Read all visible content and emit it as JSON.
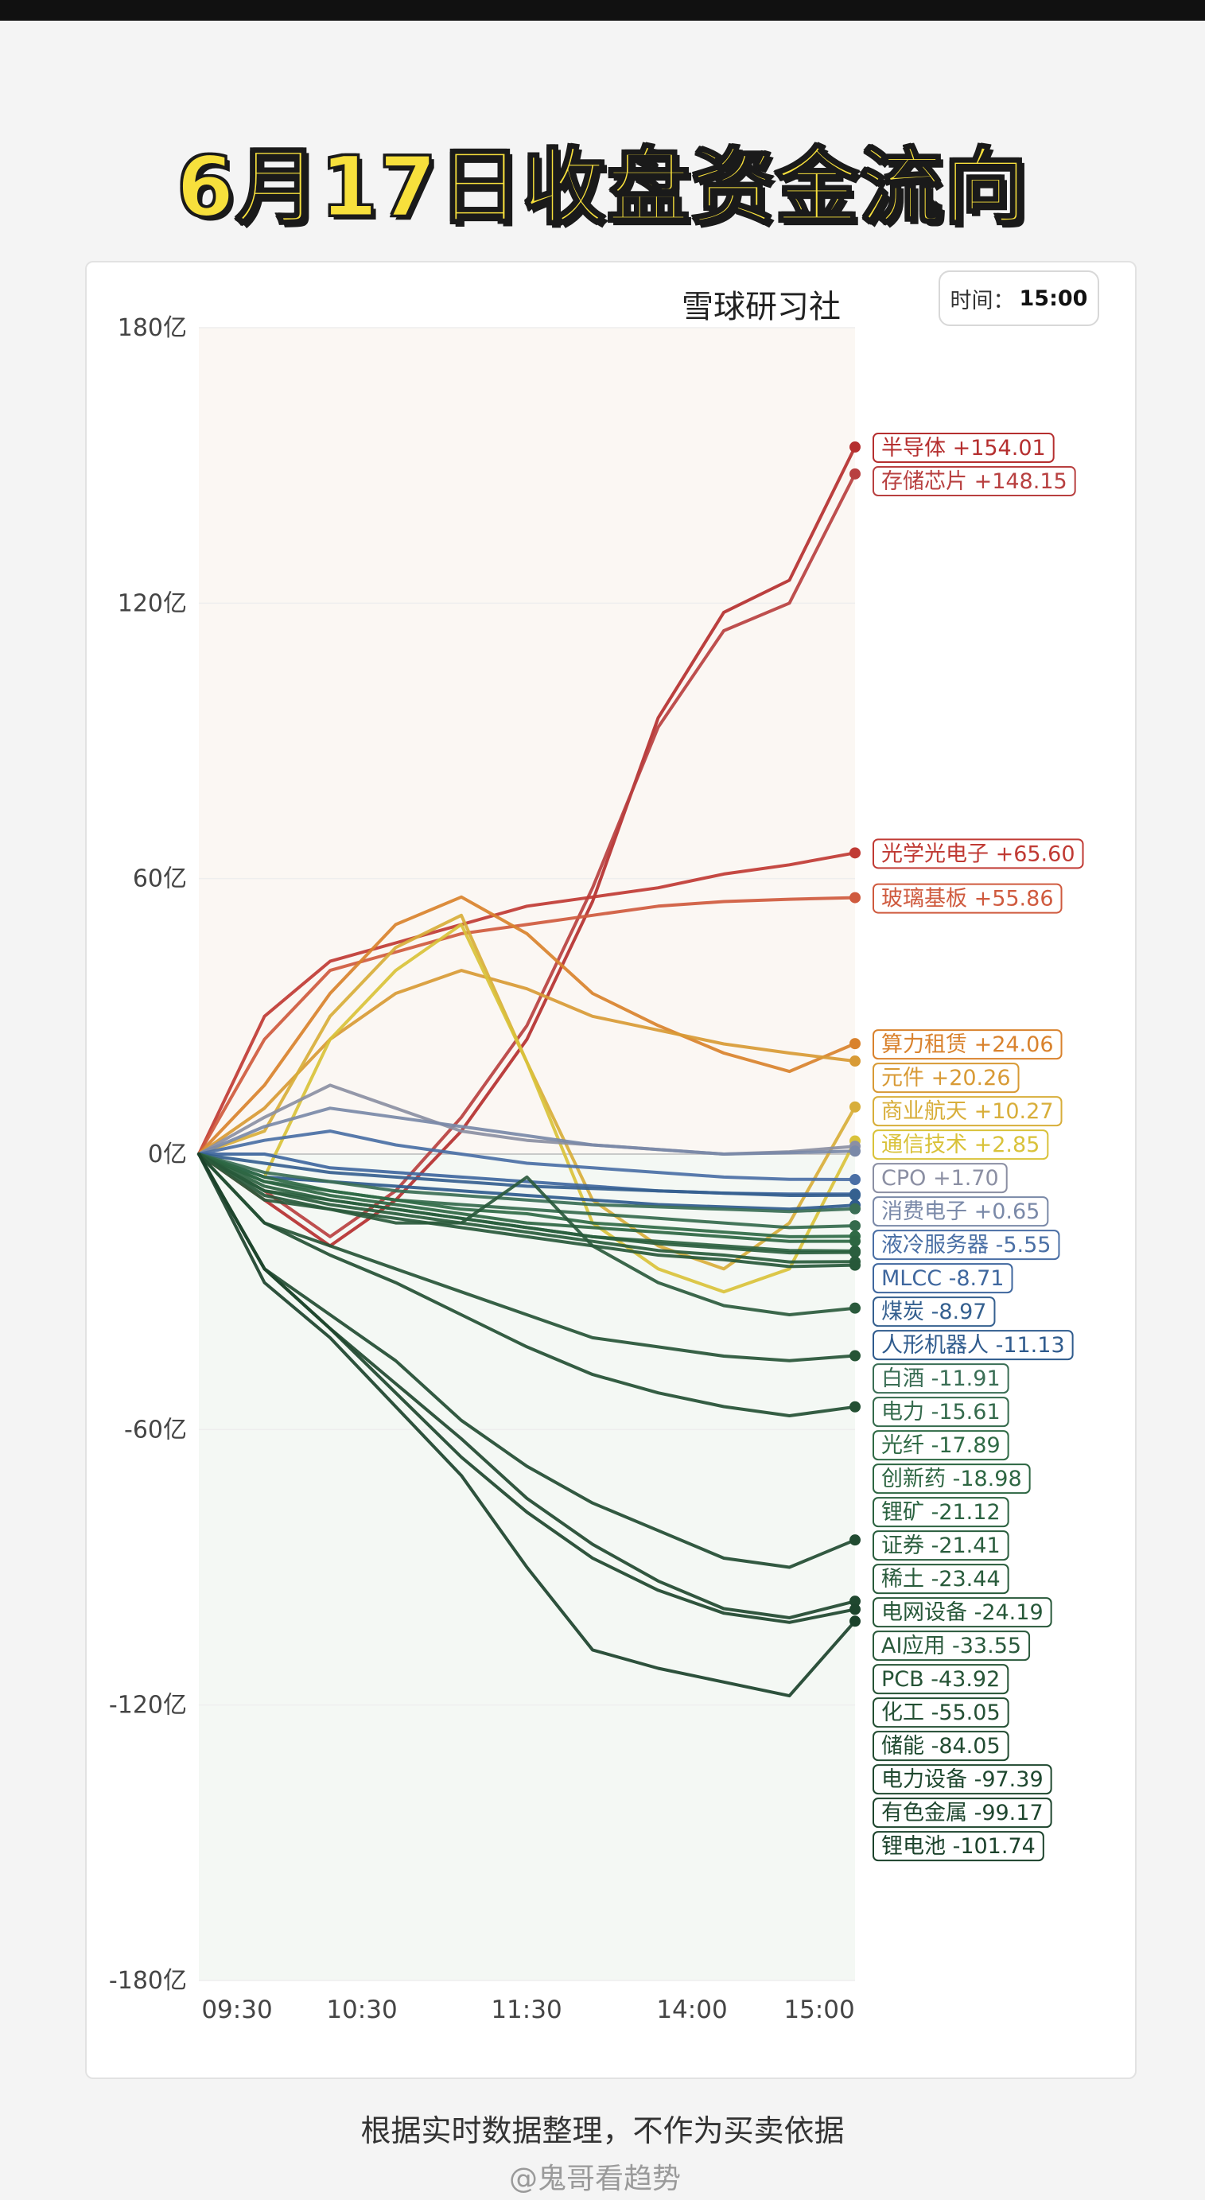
{
  "headline": "6月17日收盘资金流向",
  "brand": "雪球研习社",
  "time_label": "时间：",
  "time_value": "15:00",
  "footnote": "根据实时数据整理，不作为买卖依据",
  "watermark": "@鬼哥看趋势",
  "colors": {
    "up_strong": "#b8302c",
    "up": "#d9742a",
    "up_light": "#d8b836",
    "neutral": "#8a94a8",
    "blue": "#2e5e9a",
    "down": "#2f6e4a",
    "down_dark": "#1f4d33"
  },
  "chart_data": {
    "type": "line",
    "title": "6月17日收盘资金流向",
    "xlabel": "",
    "ylabel": "",
    "x_ticks": [
      "09:30",
      "10:30",
      "11:30",
      "14:00",
      "15:00"
    ],
    "y_ticks": [
      "180亿",
      "120亿",
      "60亿",
      "0亿",
      "-60亿",
      "-120亿",
      "-180亿"
    ],
    "ylim": [
      -180,
      180
    ],
    "unit": "亿",
    "grid": true,
    "series": [
      {
        "name": "半导体",
        "value_text": "+154.01",
        "color": "#b52f2f",
        "values": [
          0,
          -10,
          -20,
          -10,
          5,
          25,
          55,
          95,
          118,
          125,
          154.01
        ]
      },
      {
        "name": "存储芯片",
        "value_text": "+148.15",
        "color": "#b84040",
        "values": [
          0,
          -8,
          -18,
          -8,
          8,
          28,
          58,
          93,
          114,
          120,
          148.15
        ]
      },
      {
        "name": "光学光电子",
        "value_text": "+65.60",
        "color": "#c03a34",
        "values": [
          0,
          30,
          42,
          46,
          50,
          54,
          56,
          58,
          61,
          63,
          65.6
        ]
      },
      {
        "name": "玻璃基板",
        "value_text": "+55.86",
        "color": "#cf5a3e",
        "values": [
          0,
          25,
          40,
          44,
          48,
          50,
          52,
          54,
          55,
          55.5,
          55.86
        ]
      },
      {
        "name": "算力租赁",
        "value_text": "+24.06",
        "color": "#d9822d",
        "values": [
          0,
          15,
          35,
          50,
          56,
          48,
          35,
          28,
          22,
          18,
          24.06
        ]
      },
      {
        "name": "元件",
        "value_text": "+20.26",
        "color": "#d89a35",
        "values": [
          0,
          10,
          25,
          35,
          40,
          36,
          30,
          27,
          24,
          22,
          20.26
        ]
      },
      {
        "name": "商业航天",
        "value_text": "+10.27",
        "color": "#d8ae3a",
        "values": [
          0,
          5,
          30,
          45,
          52,
          20,
          -10,
          -20,
          -25,
          -15,
          10.27
        ]
      },
      {
        "name": "通信技术",
        "value_text": "+2.85",
        "color": "#d9c23a",
        "values": [
          0,
          -5,
          25,
          40,
          50,
          20,
          -15,
          -25,
          -30,
          -25,
          2.85
        ]
      },
      {
        "name": "CPO",
        "value_text": "+1.70",
        "color": "#8b8fa3",
        "values": [
          0,
          8,
          15,
          10,
          5,
          3,
          2,
          1,
          0,
          0.5,
          1.7
        ]
      },
      {
        "name": "消费电子",
        "value_text": "+0.65",
        "color": "#7a89a8",
        "values": [
          0,
          6,
          10,
          8,
          6,
          4,
          2,
          1,
          0,
          0.3,
          0.65
        ]
      },
      {
        "name": "液冷服务器",
        "value_text": "-5.55",
        "color": "#4a6fa5",
        "values": [
          0,
          3,
          5,
          2,
          0,
          -2,
          -3,
          -4,
          -5,
          -5.5,
          -5.55
        ]
      },
      {
        "name": "MLCC",
        "value_text": "-8.71",
        "color": "#3f679e",
        "values": [
          0,
          0,
          -3,
          -4,
          -5,
          -6,
          -7,
          -8,
          -8.5,
          -8.7,
          -8.71
        ]
      },
      {
        "name": "煤炭",
        "value_text": "-8.97",
        "color": "#35608f",
        "values": [
          0,
          -2,
          -4,
          -5,
          -6,
          -7,
          -7.5,
          -8,
          -8.5,
          -9,
          -8.97
        ]
      },
      {
        "name": "人形机器人",
        "value_text": "-11.13",
        "color": "#2f5b8d",
        "values": [
          0,
          -5,
          -6,
          -7,
          -8,
          -9,
          -10,
          -11,
          -11.5,
          -12,
          -11.13
        ]
      },
      {
        "name": "白酒",
        "value_text": "-11.91",
        "color": "#3a6e55",
        "values": [
          0,
          -4,
          -6,
          -8,
          -9,
          -10,
          -11,
          -11.5,
          -12,
          -12.5,
          -11.91
        ]
      },
      {
        "name": "电力",
        "value_text": "-15.61",
        "color": "#346a4c",
        "values": [
          0,
          -6,
          -8,
          -10,
          -11,
          -12,
          -13,
          -14,
          -15,
          -16,
          -15.61
        ]
      },
      {
        "name": "光纤",
        "value_text": "-17.89",
        "color": "#2f6a45",
        "values": [
          0,
          -5,
          -8,
          -10,
          -12,
          -13,
          -15,
          -16,
          -17,
          -18,
          -17.89
        ]
      },
      {
        "name": "创新药",
        "value_text": "-18.98",
        "color": "#2d6642",
        "values": [
          0,
          -6,
          -9,
          -11,
          -13,
          -15,
          -16,
          -17,
          -18,
          -19,
          -18.98
        ]
      },
      {
        "name": "锂矿",
        "value_text": "-21.12",
        "color": "#2b6240",
        "values": [
          0,
          -7,
          -10,
          -12,
          -14,
          -16,
          -18,
          -19,
          -20,
          -21,
          -21.12
        ]
      },
      {
        "name": "证券",
        "value_text": "-21.41",
        "color": "#2a5e3e",
        "values": [
          0,
          -8,
          -10,
          -12,
          -14,
          -16,
          -18,
          -19.5,
          -20.5,
          -21.5,
          -21.41
        ]
      },
      {
        "name": "稀土",
        "value_text": "-23.44",
        "color": "#285b3b",
        "values": [
          0,
          -8,
          -11,
          -13,
          -15,
          -17,
          -19,
          -21,
          -22,
          -23.5,
          -23.44
        ]
      },
      {
        "name": "电网设备",
        "value_text": "-24.19",
        "color": "#275839",
        "values": [
          0,
          -9,
          -12,
          -14,
          -16,
          -18,
          -20,
          -22,
          -23,
          -24.5,
          -24.19
        ]
      },
      {
        "name": "AI应用",
        "value_text": "-33.55",
        "color": "#2a5a3c",
        "values": [
          0,
          -10,
          -12,
          -15,
          -15,
          -5,
          -20,
          -28,
          -33,
          -35,
          -33.55
        ]
      },
      {
        "name": "PCB",
        "value_text": "-43.92",
        "color": "#265436",
        "values": [
          0,
          -15,
          -20,
          -25,
          -30,
          -35,
          -40,
          -42,
          -44,
          -45,
          -43.92
        ]
      },
      {
        "name": "化工",
        "value_text": "-55.05",
        "color": "#234f33",
        "values": [
          0,
          -15,
          -22,
          -28,
          -35,
          -42,
          -48,
          -52,
          -55,
          -57,
          -55.05
        ]
      },
      {
        "name": "储能",
        "value_text": "-84.05",
        "color": "#214b31",
        "values": [
          0,
          -25,
          -35,
          -45,
          -58,
          -68,
          -76,
          -82,
          -88,
          -90,
          -84.05
        ]
      },
      {
        "name": "电力设备",
        "value_text": "-97.39",
        "color": "#1f482f",
        "values": [
          0,
          -25,
          -38,
          -50,
          -62,
          -75,
          -85,
          -93,
          -99,
          -101,
          -97.39
        ]
      },
      {
        "name": "有色金属",
        "value_text": "-99.17",
        "color": "#1d452d",
        "values": [
          0,
          -25,
          -38,
          -52,
          -66,
          -78,
          -88,
          -95,
          -100,
          -102,
          -99.17
        ]
      },
      {
        "name": "锂电池",
        "value_text": "-101.74",
        "color": "#1b422b",
        "values": [
          0,
          -28,
          -40,
          -55,
          -70,
          -90,
          -108,
          -112,
          -115,
          -118,
          -101.74
        ]
      }
    ]
  }
}
